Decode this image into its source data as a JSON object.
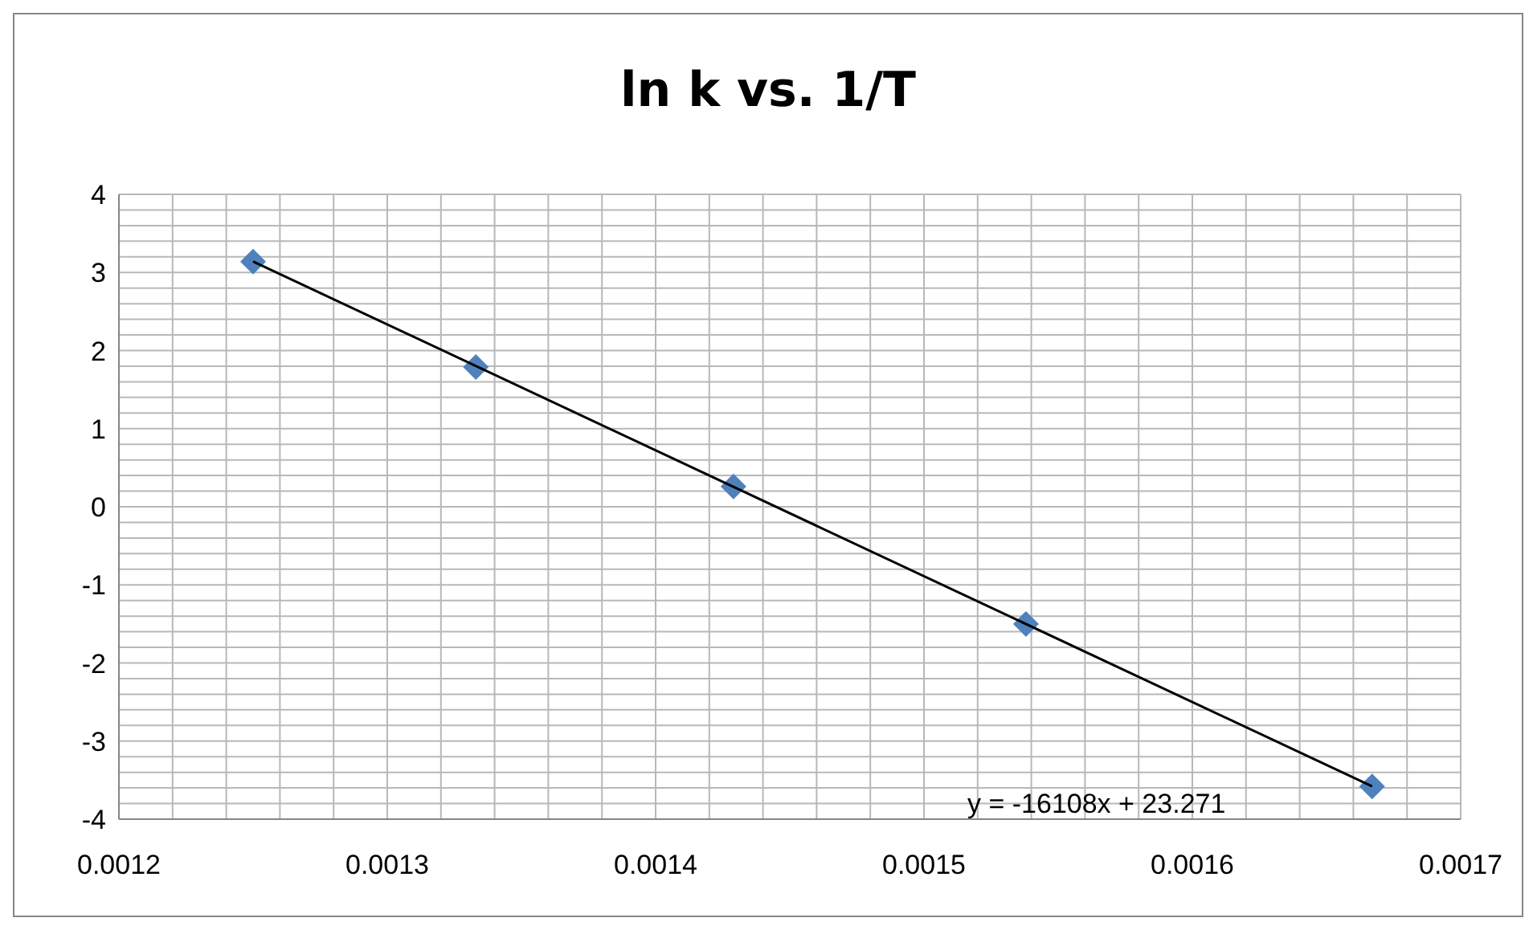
{
  "chart_data": {
    "type": "scatter",
    "title": "ln k vs. 1/T",
    "x": [
      0.00125,
      0.001333,
      0.001429,
      0.001538,
      0.001667
    ],
    "series": [
      {
        "color": "#4f81bd",
        "values": [
          3.14,
          1.79,
          0.26,
          -1.5,
          -3.58
        ],
        "marker": "diamond"
      },
      {
        "type": "line",
        "color": "#000000",
        "x": [
          0.00125,
          0.001667
        ],
        "values": [
          3.14,
          -3.58
        ],
        "marker": "none"
      }
    ],
    "annotations": [
      "y = -16108x + 23.271"
    ],
    "xlim": [
      0.0012,
      0.0017
    ],
    "xticks": [
      0.0012,
      {
        "value": 0.00122,
        "label": null
      },
      {
        "value": 0.00124,
        "label": null
      },
      {
        "value": 0.00126,
        "label": null
      },
      {
        "value": 0.00128,
        "label": null
      },
      0.0013,
      {
        "value": 0.00132,
        "label": null
      },
      {
        "value": 0.00134,
        "label": null
      },
      {
        "value": 0.00136,
        "label": null
      },
      {
        "value": 0.00138,
        "label": null
      },
      0.0014,
      {
        "value": 0.00142,
        "label": null
      },
      {
        "value": 0.00144,
        "label": null
      },
      {
        "value": 0.00146,
        "label": null
      },
      {
        "value": 0.00148,
        "label": null
      },
      0.0015,
      {
        "value": 0.00152,
        "label": null
      },
      {
        "value": 0.00154,
        "label": null
      },
      {
        "value": 0.00156,
        "label": null
      },
      {
        "value": 0.00158,
        "label": null
      },
      0.0016,
      {
        "value": 0.00162,
        "label": null
      },
      {
        "value": 0.00164,
        "label": null
      },
      {
        "value": 0.00166,
        "label": null
      },
      {
        "value": 0.00168,
        "label": null
      },
      0.0017
    ],
    "ylim": [
      -4,
      4
    ],
    "yticks": [
      -4,
      {
        "value": -3.8,
        "label": null
      },
      {
        "value": -3.6,
        "label": null
      },
      {
        "value": -3.4,
        "label": null
      },
      {
        "value": -3.2,
        "label": null
      },
      -3,
      {
        "value": -2.8,
        "label": null
      },
      {
        "value": -2.6,
        "label": null
      },
      {
        "value": -2.4,
        "label": null
      },
      {
        "value": -2.2,
        "label": null
      },
      -2,
      {
        "value": -1.8,
        "label": null
      },
      {
        "value": -1.6,
        "label": null
      },
      {
        "value": -1.4,
        "label": null
      },
      {
        "value": -1.2,
        "label": null
      },
      -1,
      {
        "value": -0.8,
        "label": null
      },
      {
        "value": -0.6,
        "label": null
      },
      {
        "value": -0.4,
        "label": null
      },
      {
        "value": -0.2,
        "label": null
      },
      0,
      {
        "value": 0.2,
        "label": null
      },
      {
        "value": 0.4,
        "label": null
      },
      {
        "value": 0.6,
        "label": null
      },
      {
        "value": 0.8,
        "label": null
      },
      1,
      {
        "value": 1.2,
        "label": null
      },
      {
        "value": 1.4,
        "label": null
      },
      {
        "value": 1.6,
        "label": null
      },
      {
        "value": 1.8,
        "label": null
      },
      2,
      {
        "value": 2.2,
        "label": null
      },
      {
        "value": 2.4,
        "label": null
      },
      {
        "value": 2.6,
        "label": null
      },
      {
        "value": 2.8,
        "label": null
      },
      3,
      {
        "value": 3.2,
        "label": null
      },
      {
        "value": 3.4,
        "label": null
      },
      {
        "value": 3.6,
        "label": null
      },
      {
        "value": 3.8,
        "label": null
      },
      4
    ],
    "grid": true
  }
}
